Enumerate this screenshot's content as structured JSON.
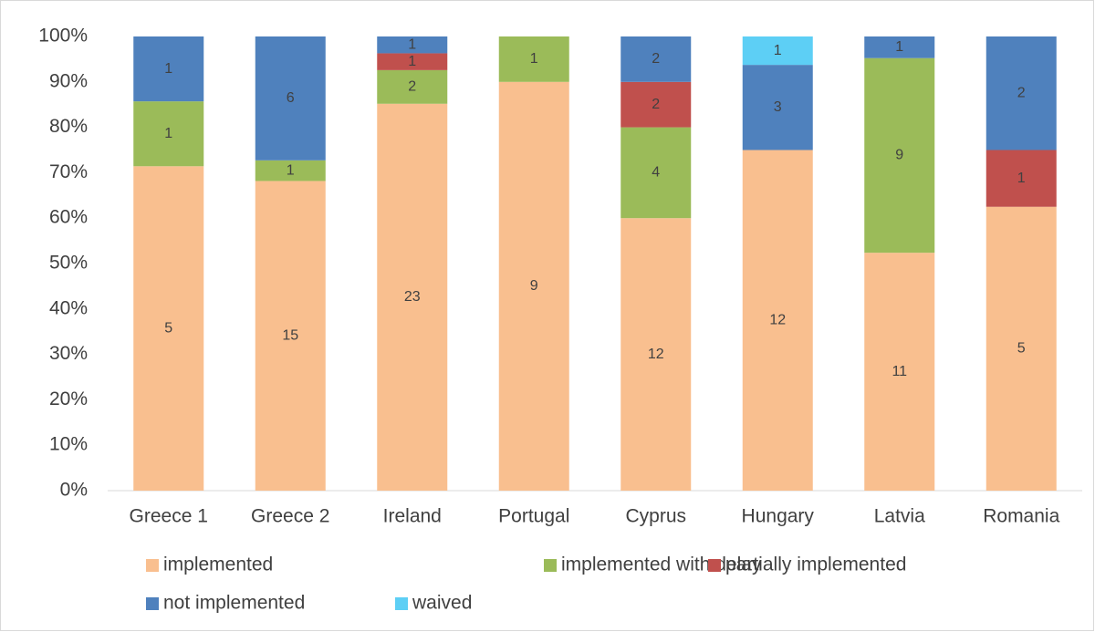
{
  "chart_data": {
    "type": "bar",
    "stacking": "percent",
    "categories": [
      "Greece 1",
      "Greece 2",
      "Ireland",
      "Portugal",
      "Cyprus",
      "Hungary",
      "Latvia",
      "Romania"
    ],
    "series": [
      {
        "name": "implemented",
        "color": "#f9bf8f",
        "values": [
          5,
          15,
          23,
          9,
          12,
          12,
          11,
          5
        ]
      },
      {
        "name": "implemented with delay",
        "color": "#9bbb59",
        "values": [
          1,
          1,
          2,
          1,
          4,
          null,
          9,
          null
        ]
      },
      {
        "name": "partially implemented",
        "color": "#c0504d",
        "values": [
          null,
          null,
          1,
          null,
          2,
          null,
          null,
          1
        ]
      },
      {
        "name": "not implemented",
        "color": "#4f81bd",
        "values": [
          1,
          6,
          1,
          null,
          2,
          3,
          1,
          2
        ]
      },
      {
        "name": "waived",
        "color": "#5dcff5",
        "values": [
          null,
          null,
          null,
          null,
          null,
          1,
          null,
          null
        ]
      }
    ],
    "ylim": [
      0,
      100
    ],
    "yticks": [
      {
        "value": 0,
        "label": "0%"
      },
      {
        "value": 10,
        "label": "10%"
      },
      {
        "value": 20,
        "label": "20%"
      },
      {
        "value": 30,
        "label": "30%"
      },
      {
        "value": 40,
        "label": "40%"
      },
      {
        "value": 50,
        "label": "50%"
      },
      {
        "value": 60,
        "label": "60%"
      },
      {
        "value": 70,
        "label": "70%"
      },
      {
        "value": 80,
        "label": "80%"
      },
      {
        "value": 90,
        "label": "90%"
      },
      {
        "value": 100,
        "label": "100%"
      }
    ],
    "grid": false,
    "legend": "bottom"
  }
}
